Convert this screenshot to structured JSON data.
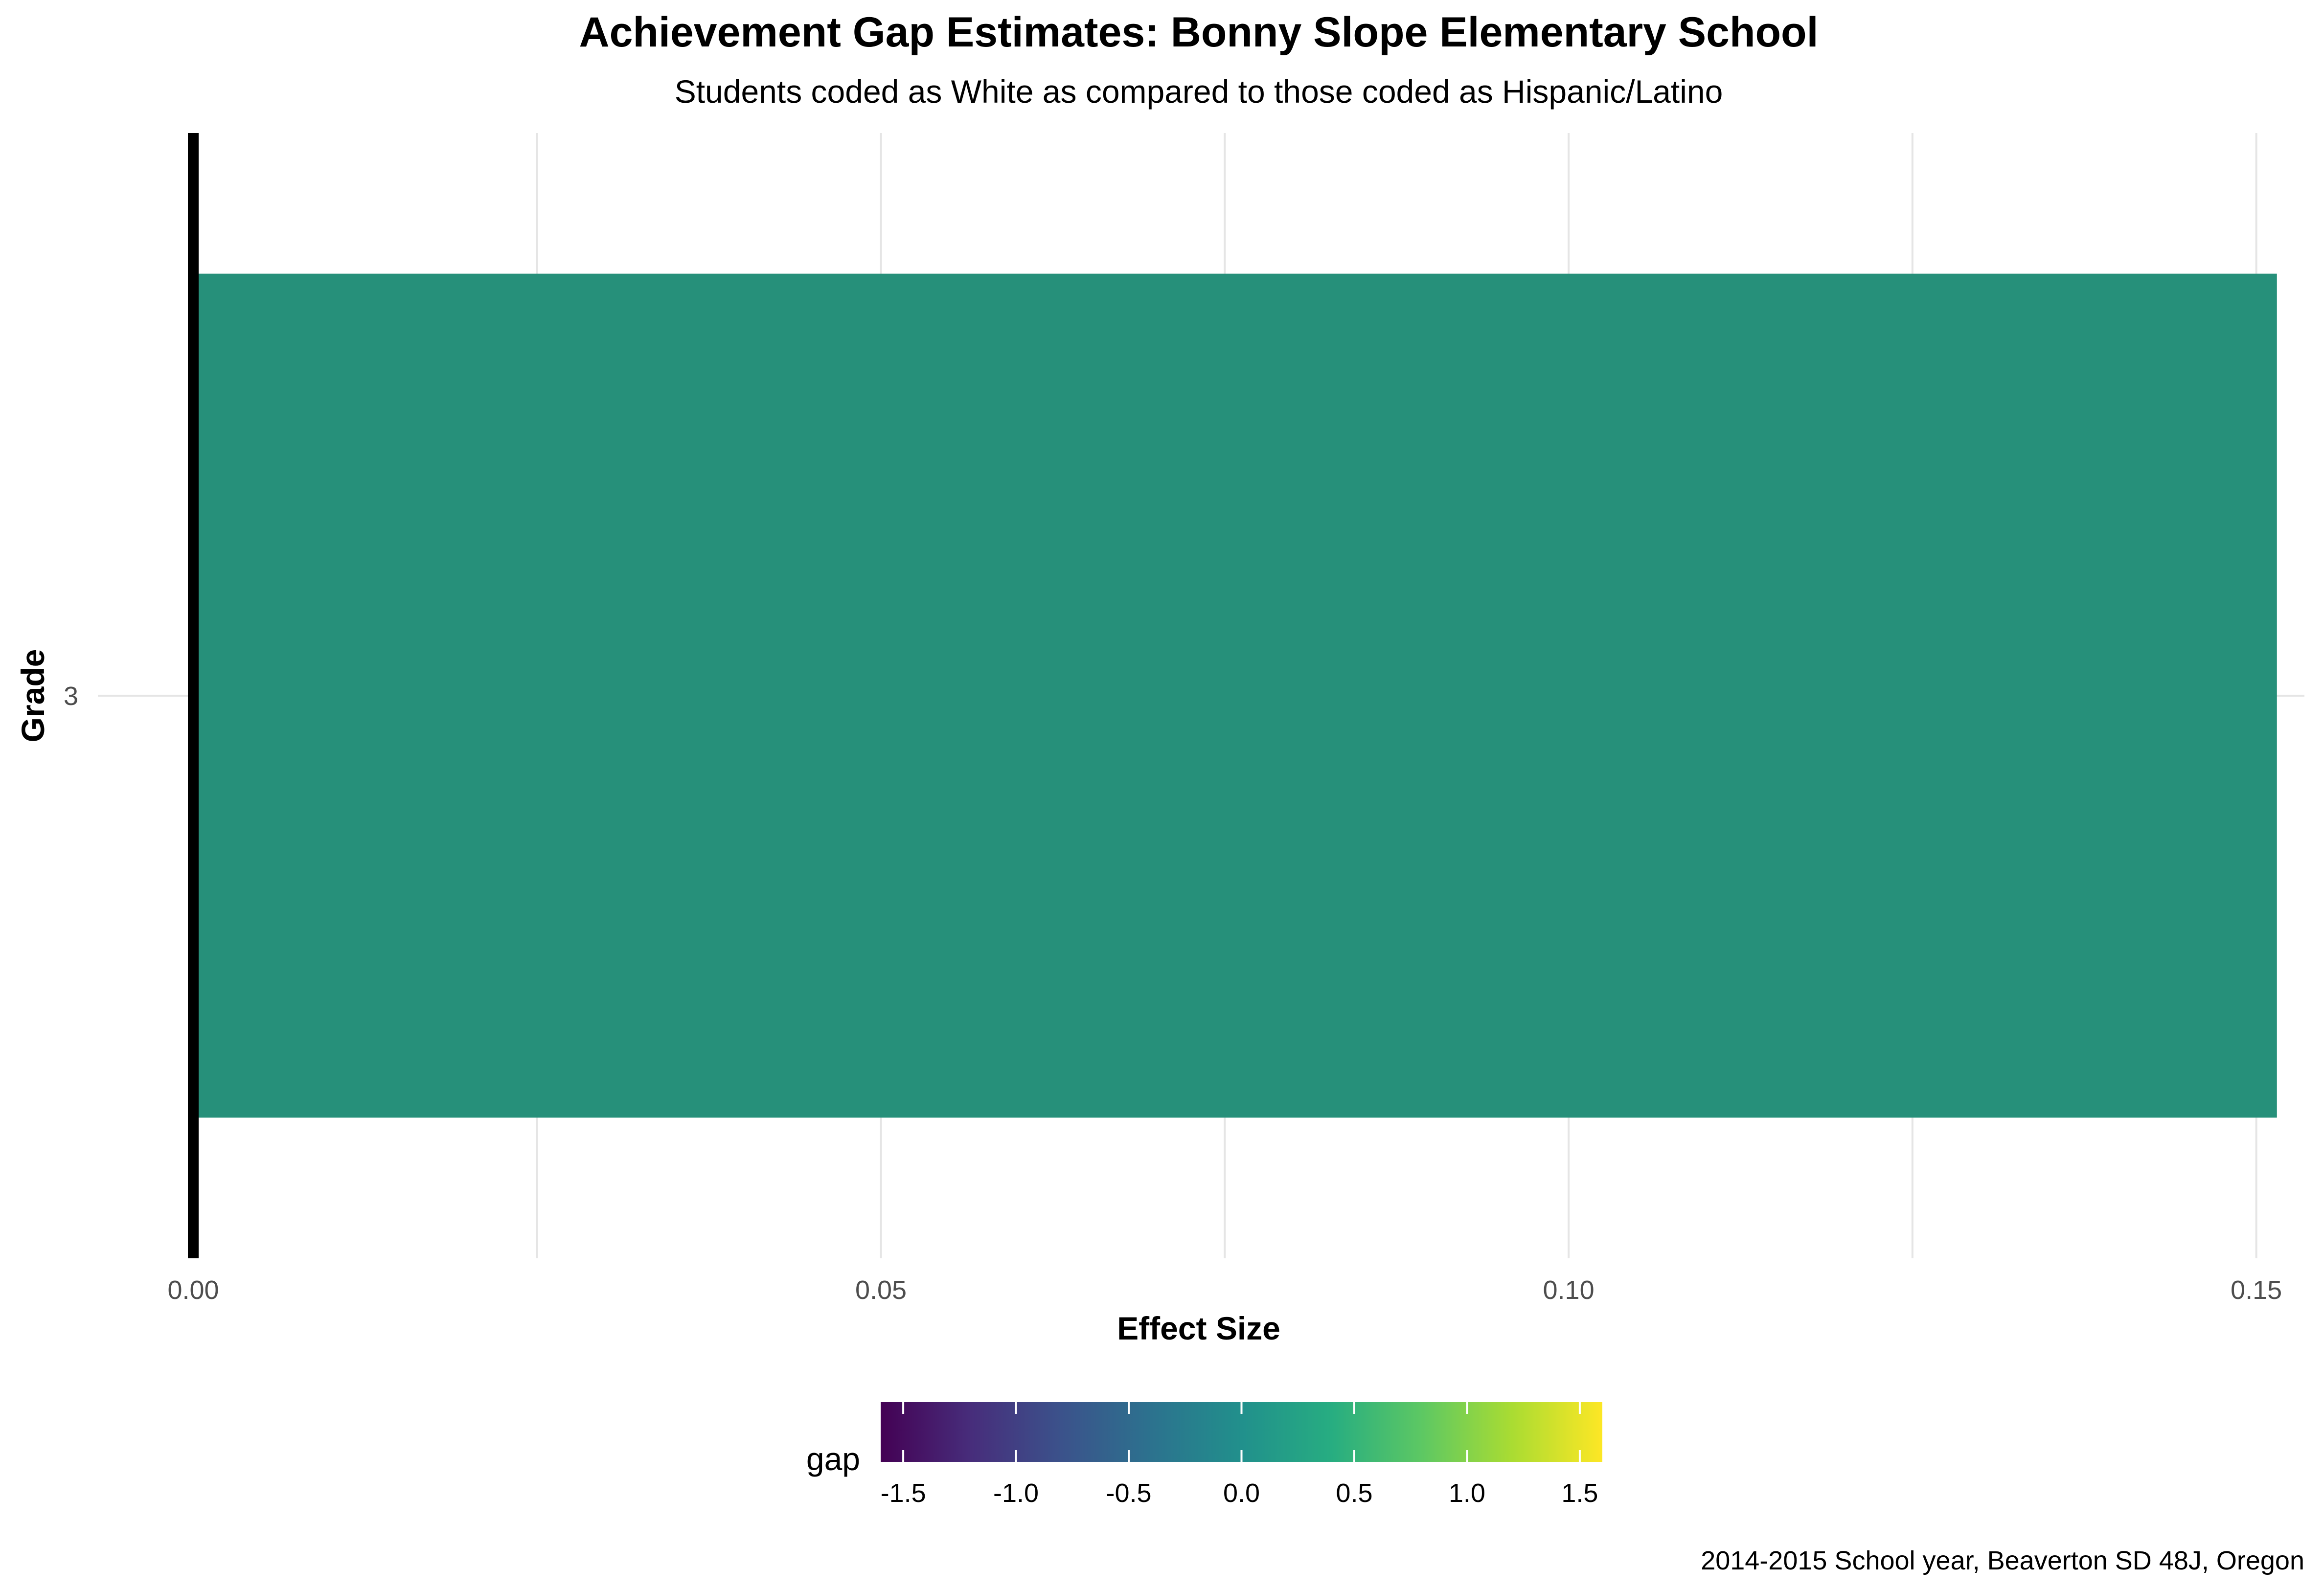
{
  "chart_data": {
    "type": "bar",
    "orientation": "horizontal",
    "title": "Achievement Gap Estimates: Bonny Slope Elementary School",
    "subtitle": "Students coded as White as compared to those coded as Hispanic/Latino",
    "xlabel": "Effect Size",
    "ylabel": "Grade",
    "categories": [
      "3"
    ],
    "values": [
      0.1515
    ],
    "xlim": [
      0,
      0.1535
    ],
    "x_ticks": [
      0.0,
      0.05,
      0.1,
      0.15
    ],
    "x_tick_labels": [
      "0.00",
      "0.05",
      "0.10",
      "0.15"
    ],
    "x_minor_ticks": [
      0.025,
      0.075,
      0.125
    ],
    "reference_line_x": 0,
    "grid": true,
    "bar_color": "#26907A",
    "legend": {
      "title": "gap",
      "position": "bottom",
      "type": "colorbar",
      "palette": "viridis",
      "range": [
        -1.6,
        1.6
      ],
      "ticks": [
        -1.5,
        -1.0,
        -0.5,
        0.0,
        0.5,
        1.0,
        1.5
      ],
      "tick_labels": [
        "-1.5",
        "-1.0",
        "-0.5",
        "0.0",
        "0.5",
        "1.0",
        "1.5"
      ]
    },
    "caption": "2014-2015 School year, Beaverton SD 48J, Oregon"
  }
}
